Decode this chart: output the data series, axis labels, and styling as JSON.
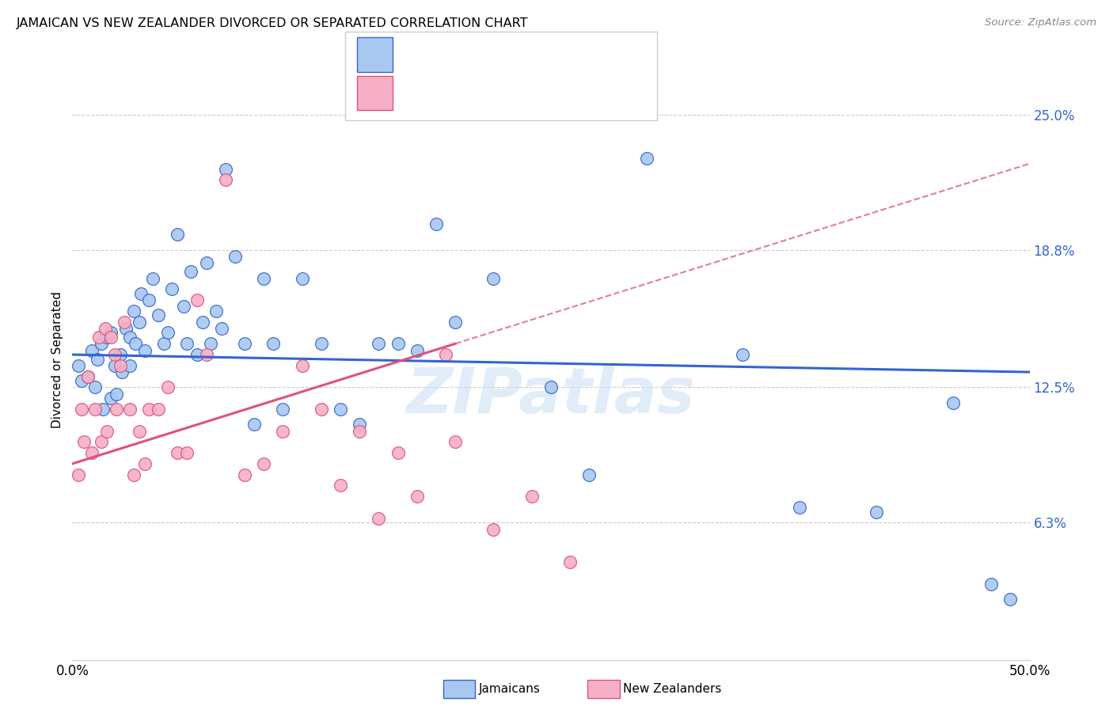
{
  "title": "JAMAICAN VS NEW ZEALANDER DIVORCED OR SEPARATED CORRELATION CHART",
  "source": "Source: ZipAtlas.com",
  "ylabel": "Divorced or Separated",
  "ytick_labels": [
    "6.3%",
    "12.5%",
    "18.8%",
    "25.0%"
  ],
  "ytick_values": [
    6.3,
    12.5,
    18.8,
    25.0
  ],
  "xlim": [
    0.0,
    50.0
  ],
  "ylim": [
    0.0,
    27.5
  ],
  "watermark": "ZIPatlas",
  "blue_color": "#a8c8f0",
  "pink_color": "#f5b0c5",
  "blue_line_color": "#3366cc",
  "pink_line_color": "#e05080",
  "dashed_line_color": "#e08090",
  "background_color": "#ffffff",
  "blue_trend_start_y": 14.0,
  "blue_trend_end_y": 13.2,
  "pink_trend_start_y": 9.0,
  "pink_trend_end_y": 14.5,
  "pink_trend_x_end": 20.0,
  "jamaicans_x": [
    0.3,
    0.5,
    0.8,
    1.0,
    1.2,
    1.3,
    1.5,
    1.6,
    1.8,
    2.0,
    2.0,
    2.2,
    2.3,
    2.5,
    2.6,
    2.8,
    3.0,
    3.0,
    3.2,
    3.3,
    3.5,
    3.6,
    3.8,
    4.0,
    4.2,
    4.5,
    4.8,
    5.0,
    5.2,
    5.5,
    5.8,
    6.0,
    6.2,
    6.5,
    6.8,
    7.0,
    7.2,
    7.5,
    7.8,
    8.0,
    8.5,
    9.0,
    9.5,
    10.0,
    10.5,
    11.0,
    12.0,
    13.0,
    14.0,
    15.0,
    16.0,
    17.0,
    18.0,
    19.0,
    20.0,
    22.0,
    25.0,
    27.0,
    30.0,
    35.0,
    38.0,
    42.0,
    46.0,
    48.0,
    49.0
  ],
  "jamaicans_y": [
    13.5,
    12.8,
    13.0,
    14.2,
    12.5,
    13.8,
    14.5,
    11.5,
    14.8,
    12.0,
    15.0,
    13.5,
    12.2,
    14.0,
    13.2,
    15.2,
    13.5,
    14.8,
    16.0,
    14.5,
    15.5,
    16.8,
    14.2,
    16.5,
    17.5,
    15.8,
    14.5,
    15.0,
    17.0,
    19.5,
    16.2,
    14.5,
    17.8,
    14.0,
    15.5,
    18.2,
    14.5,
    16.0,
    15.2,
    22.5,
    18.5,
    14.5,
    10.8,
    17.5,
    14.5,
    11.5,
    17.5,
    14.5,
    11.5,
    10.8,
    14.5,
    14.5,
    14.2,
    20.0,
    15.5,
    17.5,
    12.5,
    8.5,
    23.0,
    14.0,
    7.0,
    6.8,
    11.8,
    3.5,
    2.8
  ],
  "newzealanders_x": [
    0.3,
    0.5,
    0.6,
    0.8,
    1.0,
    1.2,
    1.4,
    1.5,
    1.7,
    1.8,
    2.0,
    2.2,
    2.3,
    2.5,
    2.7,
    3.0,
    3.2,
    3.5,
    3.8,
    4.0,
    4.5,
    5.0,
    5.5,
    6.0,
    6.5,
    7.0,
    8.0,
    9.0,
    10.0,
    11.0,
    12.0,
    13.0,
    14.0,
    15.0,
    16.0,
    17.0,
    18.0,
    19.5,
    20.0,
    22.0,
    24.0,
    26.0
  ],
  "newzealanders_y": [
    8.5,
    11.5,
    10.0,
    13.0,
    9.5,
    11.5,
    14.8,
    10.0,
    15.2,
    10.5,
    14.8,
    14.0,
    11.5,
    13.5,
    15.5,
    11.5,
    8.5,
    10.5,
    9.0,
    11.5,
    11.5,
    12.5,
    9.5,
    9.5,
    16.5,
    14.0,
    22.0,
    8.5,
    9.0,
    10.5,
    13.5,
    11.5,
    8.0,
    10.5,
    6.5,
    9.5,
    7.5,
    14.0,
    10.0,
    6.0,
    7.5,
    4.5
  ]
}
